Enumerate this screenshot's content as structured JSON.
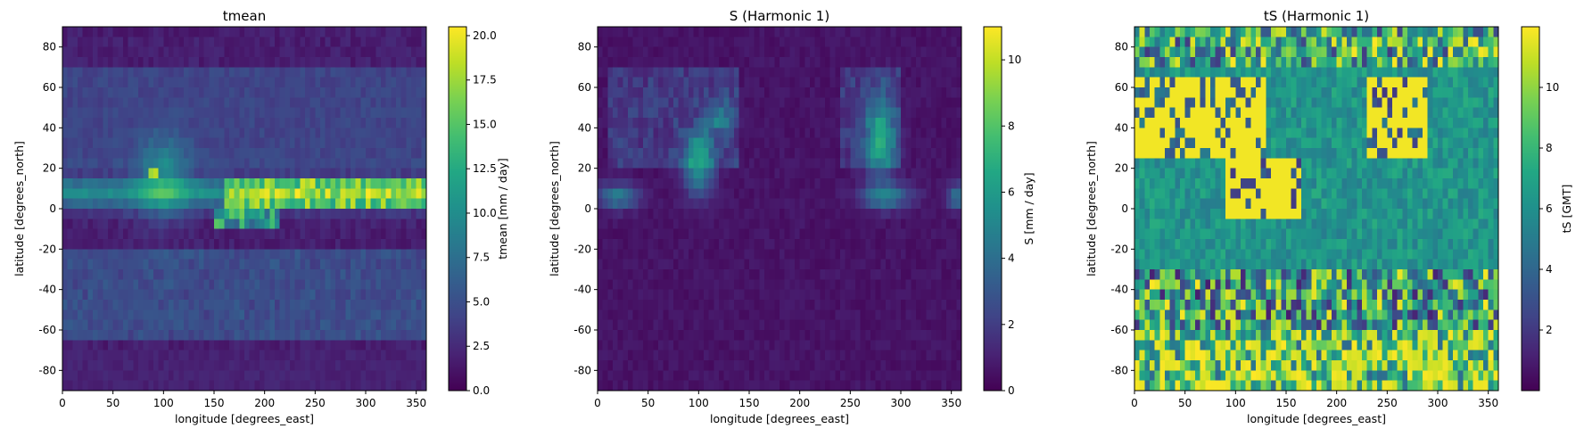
{
  "chart_data": [
    {
      "type": "heatmap",
      "title": "tmean",
      "xlabel": "longitude [degrees_east]",
      "ylabel": "latitude [degrees_north]",
      "colorbar_label": "tmean [mm / day]",
      "colormap": "viridis",
      "xlim": [
        0,
        360
      ],
      "ylim": [
        -90,
        90
      ],
      "xticks": [
        0,
        50,
        100,
        150,
        200,
        250,
        300,
        350
      ],
      "yticks": [
        -80,
        -60,
        -40,
        -20,
        0,
        20,
        40,
        60,
        80
      ],
      "vlim": [
        0,
        20.5
      ],
      "cbar_ticks": [
        0.0,
        2.5,
        5.0,
        7.5,
        10.0,
        12.5,
        15.0,
        17.5,
        20.0
      ],
      "cbar_tick_labels": [
        "0.0",
        "2.5",
        "5.0",
        "7.5",
        "10.0",
        "12.5",
        "15.0",
        "17.5",
        "20.0"
      ],
      "grid_cols": 72,
      "grid_rows": 36,
      "field": "tmean",
      "grid": false
    },
    {
      "type": "heatmap",
      "title": "S (Harmonic 1)",
      "xlabel": "longitude [degrees_east]",
      "ylabel": "latitude [degrees_north]",
      "colorbar_label": "S [mm / day]",
      "colormap": "viridis",
      "xlim": [
        0,
        360
      ],
      "ylim": [
        -90,
        90
      ],
      "xticks": [
        0,
        50,
        100,
        150,
        200,
        250,
        300,
        350
      ],
      "yticks": [
        -80,
        -60,
        -40,
        -20,
        0,
        20,
        40,
        60,
        80
      ],
      "vlim": [
        0,
        11
      ],
      "cbar_ticks": [
        0,
        2,
        4,
        6,
        8,
        10
      ],
      "cbar_tick_labels": [
        "0",
        "2",
        "4",
        "6",
        "8",
        "10"
      ],
      "grid_cols": 72,
      "grid_rows": 36,
      "field": "amplitude",
      "grid": false
    },
    {
      "type": "heatmap",
      "title": "tS (Harmonic 1)",
      "xlabel": "longitude [degrees_east]",
      "ylabel": "latitude [degrees_north]",
      "colorbar_label": "tS [GMT]",
      "colormap": "viridis",
      "xlim": [
        0,
        360
      ],
      "ylim": [
        -90,
        90
      ],
      "xticks": [
        0,
        50,
        100,
        150,
        200,
        250,
        300,
        350
      ],
      "yticks": [
        -80,
        -60,
        -40,
        -20,
        0,
        20,
        40,
        60,
        80
      ],
      "vlim": [
        0,
        12
      ],
      "cbar_ticks": [
        2,
        4,
        6,
        8,
        10
      ],
      "cbar_tick_labels": [
        "2",
        "4",
        "6",
        "8",
        "10"
      ],
      "grid_cols": 72,
      "grid_rows": 36,
      "field": "phase",
      "grid": false
    }
  ]
}
